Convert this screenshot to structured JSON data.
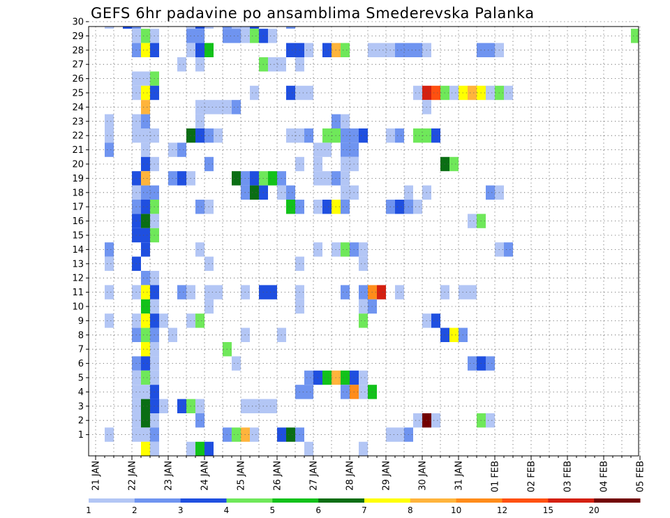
{
  "chart_data": {
    "type": "heatmap",
    "title": "GEFS 6hr padavine po ansamblima Smederevska Palanka",
    "xlabel": "",
    "ylabel": "",
    "x_tick_labels": [
      "21 JAN",
      "22 JAN",
      "23 JAN",
      "24 JAN",
      "25 JAN",
      "26 JAN",
      "27 JAN",
      "28 JAN",
      "29 JAN",
      "30 JAN",
      "31 JAN",
      "01 FEB",
      "02 FEB",
      "03 FEB",
      "04 FEB",
      "05 FEB"
    ],
    "y_tick_labels": [
      "1",
      "2",
      "3",
      "4",
      "5",
      "6",
      "7",
      "8",
      "9",
      "10",
      "11",
      "12",
      "13",
      "14",
      "15",
      "16",
      "17",
      "18",
      "19",
      "20",
      "21",
      "22",
      "23",
      "24",
      "25",
      "26",
      "27",
      "28",
      "29",
      "30"
    ],
    "xlim": [
      0,
      60
    ],
    "ylim": [
      0,
      30.5
    ],
    "grid": true,
    "colorbar": {
      "levels": [
        "1",
        "2",
        "3",
        "4",
        "5",
        "6",
        "7",
        "8",
        "10",
        "12",
        "15",
        "20"
      ],
      "colors": [
        "#b3c6f5",
        "#6f94f0",
        "#1f4fe0",
        "#6fe85a",
        "#12c21a",
        "#0a6e14",
        "#ffff00",
        "#ffb43c",
        "#ff8c1a",
        "#ff5010",
        "#d42010",
        "#720000"
      ]
    },
    "cells": [
      [
        1,
        30,
        1
      ],
      [
        3,
        30,
        3
      ],
      [
        4,
        30,
        2
      ],
      [
        10,
        30,
        1
      ],
      [
        11,
        30,
        3
      ],
      [
        12,
        30,
        1
      ],
      [
        14,
        30,
        2
      ],
      [
        15,
        30,
        1
      ],
      [
        16,
        30,
        1
      ],
      [
        17,
        30,
        3
      ],
      [
        21,
        30,
        2
      ],
      [
        4,
        29,
        1
      ],
      [
        5,
        29,
        4
      ],
      [
        6,
        29,
        1
      ],
      [
        10,
        29,
        2
      ],
      [
        11,
        29,
        2
      ],
      [
        14,
        29,
        2
      ],
      [
        15,
        29,
        2
      ],
      [
        16,
        29,
        1
      ],
      [
        17,
        29,
        4
      ],
      [
        18,
        29,
        3
      ],
      [
        19,
        29,
        1
      ],
      [
        59,
        29,
        4
      ],
      [
        60,
        29,
        5
      ],
      [
        4,
        28,
        2
      ],
      [
        5,
        28,
        7
      ],
      [
        6,
        28,
        3
      ],
      [
        10,
        28,
        1
      ],
      [
        11,
        28,
        3
      ],
      [
        12,
        28,
        5
      ],
      [
        21,
        28,
        3
      ],
      [
        22,
        28,
        3
      ],
      [
        23,
        28,
        1
      ],
      [
        25,
        28,
        3
      ],
      [
        26,
        28,
        8
      ],
      [
        27,
        28,
        4
      ],
      [
        30,
        28,
        1
      ],
      [
        31,
        28,
        1
      ],
      [
        32,
        28,
        1
      ],
      [
        33,
        28,
        2
      ],
      [
        34,
        28,
        2
      ],
      [
        35,
        28,
        2
      ],
      [
        36,
        28,
        1
      ],
      [
        42,
        28,
        2
      ],
      [
        43,
        28,
        2
      ],
      [
        44,
        28,
        1
      ],
      [
        9,
        27,
        1
      ],
      [
        11,
        27,
        1
      ],
      [
        18,
        27,
        4
      ],
      [
        19,
        27,
        1
      ],
      [
        20,
        27,
        1
      ],
      [
        22,
        27,
        1
      ],
      [
        4,
        26,
        1
      ],
      [
        5,
        26,
        1
      ],
      [
        6,
        26,
        4
      ],
      [
        4,
        25,
        1
      ],
      [
        5,
        25,
        7
      ],
      [
        6,
        25,
        3
      ],
      [
        17,
        25,
        1
      ],
      [
        21,
        25,
        3
      ],
      [
        22,
        25,
        1
      ],
      [
        23,
        25,
        1
      ],
      [
        35,
        25,
        1
      ],
      [
        36,
        25,
        11
      ],
      [
        37,
        25,
        10
      ],
      [
        38,
        25,
        4
      ],
      [
        39,
        25,
        1
      ],
      [
        40,
        25,
        7
      ],
      [
        41,
        25,
        8
      ],
      [
        42,
        25,
        7
      ],
      [
        43,
        25,
        1
      ],
      [
        44,
        25,
        4
      ],
      [
        45,
        25,
        1
      ],
      [
        5,
        24,
        8
      ],
      [
        11,
        24,
        1
      ],
      [
        12,
        24,
        1
      ],
      [
        13,
        24,
        1
      ],
      [
        14,
        24,
        1
      ],
      [
        15,
        24,
        2
      ],
      [
        36,
        24,
        1
      ],
      [
        1,
        23,
        1
      ],
      [
        4,
        23,
        1
      ],
      [
        5,
        23,
        2
      ],
      [
        11,
        23,
        1
      ],
      [
        26,
        23,
        2
      ],
      [
        27,
        23,
        1
      ],
      [
        1,
        22,
        1
      ],
      [
        4,
        22,
        1
      ],
      [
        5,
        22,
        1
      ],
      [
        6,
        22,
        1
      ],
      [
        10,
        22,
        6
      ],
      [
        11,
        22,
        3
      ],
      [
        12,
        22,
        2
      ],
      [
        13,
        22,
        1
      ],
      [
        21,
        22,
        1
      ],
      [
        22,
        22,
        1
      ],
      [
        23,
        22,
        2
      ],
      [
        25,
        22,
        4
      ],
      [
        26,
        22,
        4
      ],
      [
        27,
        22,
        2
      ],
      [
        28,
        22,
        2
      ],
      [
        29,
        22,
        3
      ],
      [
        32,
        22,
        1
      ],
      [
        33,
        22,
        2
      ],
      [
        35,
        22,
        4
      ],
      [
        36,
        22,
        4
      ],
      [
        37,
        22,
        3
      ],
      [
        1,
        21,
        2
      ],
      [
        5,
        21,
        1
      ],
      [
        8,
        21,
        1
      ],
      [
        9,
        21,
        2
      ],
      [
        24,
        21,
        1
      ],
      [
        25,
        21,
        1
      ],
      [
        27,
        21,
        2
      ],
      [
        28,
        21,
        2
      ],
      [
        5,
        20,
        3
      ],
      [
        6,
        20,
        1
      ],
      [
        12,
        20,
        2
      ],
      [
        22,
        20,
        1
      ],
      [
        24,
        20,
        1
      ],
      [
        27,
        20,
        1
      ],
      [
        28,
        20,
        1
      ],
      [
        38,
        20,
        6
      ],
      [
        39,
        20,
        4
      ],
      [
        4,
        19,
        3
      ],
      [
        5,
        19,
        8
      ],
      [
        8,
        19,
        2
      ],
      [
        9,
        19,
        3
      ],
      [
        10,
        19,
        1
      ],
      [
        15,
        19,
        6
      ],
      [
        16,
        19,
        2
      ],
      [
        17,
        19,
        3
      ],
      [
        18,
        19,
        4
      ],
      [
        19,
        19,
        5
      ],
      [
        20,
        19,
        2
      ],
      [
        24,
        19,
        1
      ],
      [
        25,
        19,
        1
      ],
      [
        26,
        19,
        2
      ],
      [
        27,
        19,
        1
      ],
      [
        4,
        18,
        1
      ],
      [
        5,
        18,
        2
      ],
      [
        6,
        18,
        2
      ],
      [
        16,
        18,
        2
      ],
      [
        17,
        18,
        6
      ],
      [
        18,
        18,
        3
      ],
      [
        20,
        18,
        1
      ],
      [
        21,
        18,
        2
      ],
      [
        27,
        18,
        1
      ],
      [
        28,
        18,
        1
      ],
      [
        34,
        18,
        1
      ],
      [
        36,
        18,
        1
      ],
      [
        43,
        18,
        2
      ],
      [
        44,
        18,
        1
      ],
      [
        4,
        17,
        2
      ],
      [
        5,
        17,
        3
      ],
      [
        6,
        17,
        4
      ],
      [
        11,
        17,
        2
      ],
      [
        12,
        17,
        1
      ],
      [
        21,
        17,
        5
      ],
      [
        22,
        17,
        2
      ],
      [
        24,
        17,
        1
      ],
      [
        25,
        17,
        3
      ],
      [
        26,
        17,
        7
      ],
      [
        27,
        17,
        2
      ],
      [
        32,
        17,
        2
      ],
      [
        33,
        17,
        3
      ],
      [
        34,
        17,
        2
      ],
      [
        35,
        17,
        1
      ],
      [
        4,
        16,
        3
      ],
      [
        5,
        16,
        6
      ],
      [
        6,
        16,
        1
      ],
      [
        41,
        16,
        1
      ],
      [
        42,
        16,
        4
      ],
      [
        4,
        15,
        3
      ],
      [
        5,
        15,
        3
      ],
      [
        6,
        15,
        4
      ],
      [
        1,
        14,
        2
      ],
      [
        5,
        14,
        3
      ],
      [
        11,
        14,
        1
      ],
      [
        24,
        14,
        1
      ],
      [
        26,
        14,
        1
      ],
      [
        27,
        14,
        4
      ],
      [
        28,
        14,
        2
      ],
      [
        29,
        14,
        1
      ],
      [
        44,
        14,
        1
      ],
      [
        45,
        14,
        2
      ],
      [
        1,
        13,
        1
      ],
      [
        4,
        13,
        3
      ],
      [
        12,
        13,
        1
      ],
      [
        22,
        13,
        1
      ],
      [
        29,
        13,
        1
      ],
      [
        5,
        12,
        2
      ],
      [
        6,
        12,
        1
      ],
      [
        1,
        11,
        1
      ],
      [
        4,
        11,
        1
      ],
      [
        5,
        11,
        7
      ],
      [
        6,
        11,
        3
      ],
      [
        9,
        11,
        2
      ],
      [
        10,
        11,
        1
      ],
      [
        12,
        11,
        1
      ],
      [
        13,
        11,
        1
      ],
      [
        16,
        11,
        1
      ],
      [
        18,
        11,
        3
      ],
      [
        19,
        11,
        3
      ],
      [
        22,
        11,
        1
      ],
      [
        27,
        11,
        2
      ],
      [
        29,
        11,
        2
      ],
      [
        30,
        11,
        9
      ],
      [
        31,
        11,
        11
      ],
      [
        33,
        11,
        1
      ],
      [
        38,
        11,
        1
      ],
      [
        40,
        11,
        1
      ],
      [
        41,
        11,
        1
      ],
      [
        5,
        10,
        5
      ],
      [
        6,
        10,
        1
      ],
      [
        12,
        10,
        1
      ],
      [
        22,
        10,
        1
      ],
      [
        29,
        10,
        1
      ],
      [
        30,
        10,
        2
      ],
      [
        1,
        9,
        1
      ],
      [
        4,
        9,
        1
      ],
      [
        5,
        9,
        7
      ],
      [
        6,
        9,
        3
      ],
      [
        7,
        9,
        1
      ],
      [
        10,
        9,
        1
      ],
      [
        11,
        9,
        4
      ],
      [
        29,
        9,
        4
      ],
      [
        36,
        9,
        1
      ],
      [
        37,
        9,
        3
      ],
      [
        60,
        9,
        1
      ],
      [
        4,
        8,
        2
      ],
      [
        5,
        8,
        4
      ],
      [
        6,
        8,
        2
      ],
      [
        8,
        8,
        1
      ],
      [
        16,
        8,
        1
      ],
      [
        20,
        8,
        1
      ],
      [
        38,
        8,
        3
      ],
      [
        39,
        8,
        7
      ],
      [
        40,
        8,
        2
      ],
      [
        5,
        7,
        7
      ],
      [
        6,
        7,
        1
      ],
      [
        14,
        7,
        4
      ],
      [
        4,
        6,
        2
      ],
      [
        5,
        6,
        3
      ],
      [
        6,
        6,
        1
      ],
      [
        15,
        6,
        1
      ],
      [
        41,
        6,
        2
      ],
      [
        42,
        6,
        3
      ],
      [
        43,
        6,
        2
      ],
      [
        4,
        5,
        1
      ],
      [
        5,
        5,
        4
      ],
      [
        6,
        5,
        1
      ],
      [
        23,
        5,
        2
      ],
      [
        24,
        5,
        3
      ],
      [
        25,
        5,
        5
      ],
      [
        26,
        5,
        8
      ],
      [
        27,
        5,
        5
      ],
      [
        28,
        5,
        3
      ],
      [
        29,
        5,
        1
      ],
      [
        4,
        4,
        1
      ],
      [
        5,
        4,
        1
      ],
      [
        6,
        4,
        3
      ],
      [
        22,
        4,
        2
      ],
      [
        23,
        4,
        2
      ],
      [
        27,
        4,
        2
      ],
      [
        28,
        4,
        9
      ],
      [
        29,
        4,
        1
      ],
      [
        30,
        4,
        5
      ],
      [
        4,
        3,
        1
      ],
      [
        5,
        3,
        6
      ],
      [
        6,
        3,
        3
      ],
      [
        7,
        3,
        1
      ],
      [
        9,
        3,
        3
      ],
      [
        10,
        3,
        4
      ],
      [
        11,
        3,
        1
      ],
      [
        16,
        3,
        1
      ],
      [
        17,
        3,
        1
      ],
      [
        18,
        3,
        1
      ],
      [
        19,
        3,
        1
      ],
      [
        4,
        2,
        1
      ],
      [
        5,
        2,
        6
      ],
      [
        6,
        2,
        1
      ],
      [
        11,
        2,
        2
      ],
      [
        35,
        2,
        1
      ],
      [
        36,
        2,
        12
      ],
      [
        37,
        2,
        1
      ],
      [
        42,
        2,
        4
      ],
      [
        43,
        2,
        1
      ],
      [
        1,
        1,
        1
      ],
      [
        4,
        1,
        1
      ],
      [
        5,
        1,
        1
      ],
      [
        6,
        1,
        2
      ],
      [
        14,
        1,
        2
      ],
      [
        15,
        1,
        4
      ],
      [
        16,
        1,
        8
      ],
      [
        17,
        1,
        1
      ],
      [
        20,
        1,
        3
      ],
      [
        21,
        1,
        6
      ],
      [
        22,
        1,
        2
      ],
      [
        32,
        1,
        1
      ],
      [
        33,
        1,
        1
      ],
      [
        34,
        1,
        2
      ],
      [
        5,
        0,
        7
      ],
      [
        6,
        0,
        1
      ],
      [
        10,
        0,
        1
      ],
      [
        11,
        0,
        5
      ],
      [
        12,
        0,
        3
      ],
      [
        23,
        0,
        1
      ],
      [
        29,
        0,
        1
      ],
      [
        60,
        0,
        1
      ]
    ]
  }
}
